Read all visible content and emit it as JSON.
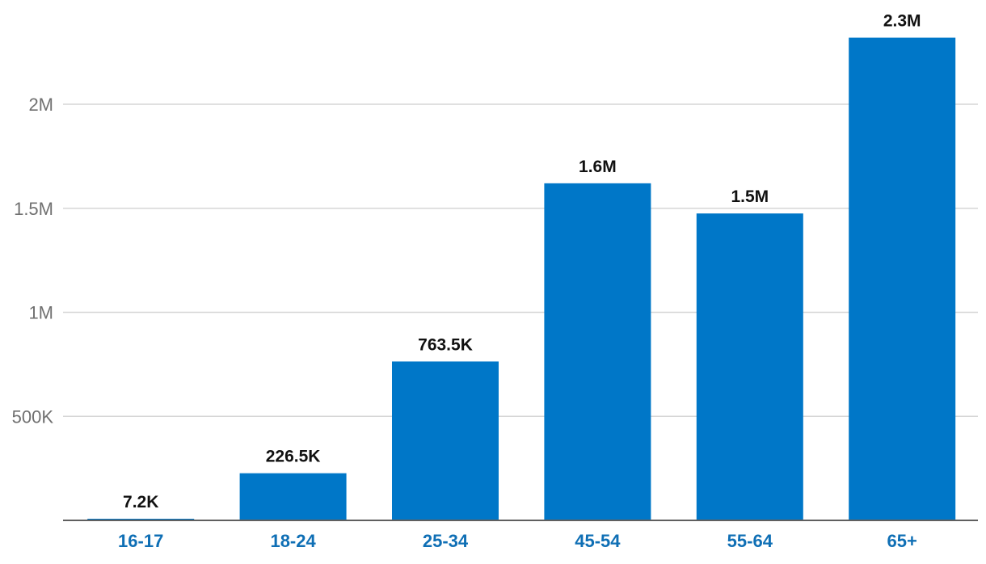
{
  "chart_data": {
    "type": "bar",
    "title": "",
    "xlabel": "",
    "ylabel": "",
    "categories": [
      "16-17",
      "18-24",
      "25-34",
      "45-54",
      "55-64",
      "65+"
    ],
    "values": [
      7200,
      226500,
      763500,
      1620000,
      1475000,
      2320000
    ],
    "data_labels": [
      "7.2K",
      "226.5K",
      "763.5K",
      "1.6M",
      "1.5M",
      "2.3M"
    ],
    "ylim": [
      0,
      2400000
    ],
    "y_ticks": [
      {
        "value": 500000,
        "label": "500K"
      },
      {
        "value": 1000000,
        "label": "1M"
      },
      {
        "value": 1500000,
        "label": "1.5M"
      },
      {
        "value": 2000000,
        "label": "2M"
      }
    ],
    "grid": true,
    "legend": "none",
    "colors": {
      "bar": "#0077c8",
      "x_tick": "#0f6fb5"
    }
  }
}
